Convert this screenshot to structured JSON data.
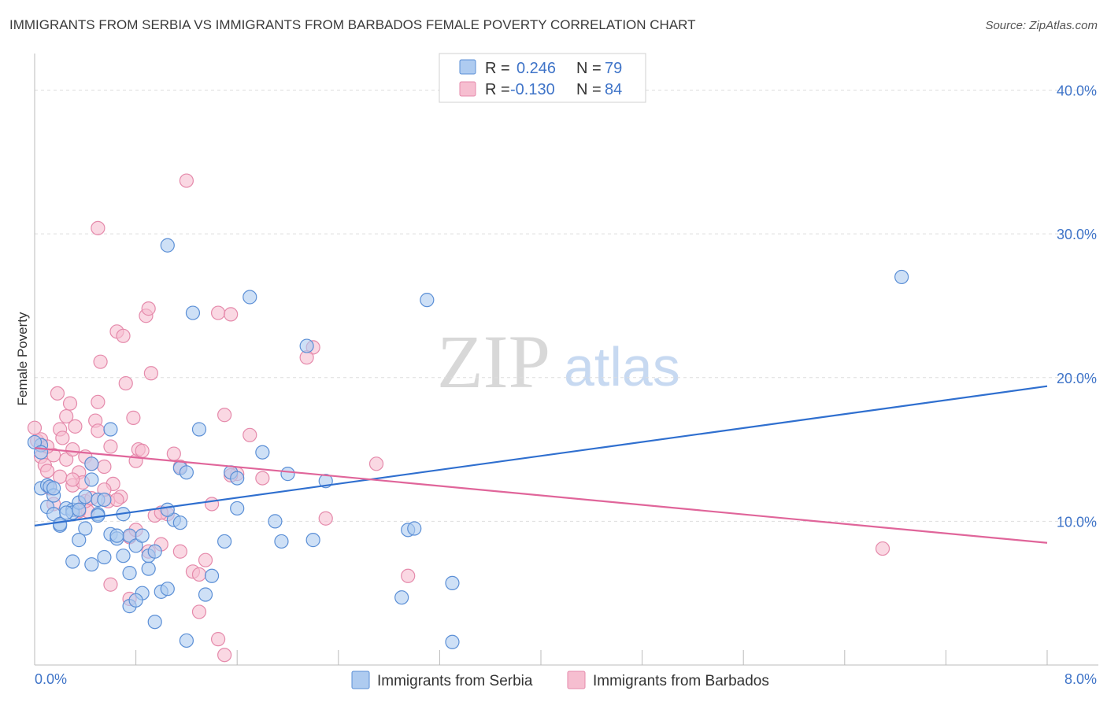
{
  "title": "IMMIGRANTS FROM SERBIA VS IMMIGRANTS FROM BARBADOS FEMALE POVERTY CORRELATION CHART",
  "source": "Source: ZipAtlas.com",
  "watermark": {
    "zip": "ZIP",
    "atlas": "atlas"
  },
  "colors": {
    "serbia_fill": "#aecbf0",
    "serbia_stroke": "#5b8fd6",
    "serbia_line": "#2f6fcf",
    "barbados_fill": "#f6bed0",
    "barbados_stroke": "#e58aab",
    "barbados_line": "#e0659a",
    "grid": "#dddddd",
    "axis_text": "#3f74c8"
  },
  "chart_data": {
    "type": "scatter",
    "title": "IMMIGRANTS FROM SERBIA VS IMMIGRANTS FROM BARBADOS FEMALE POVERTY CORRELATION CHART",
    "xlabel": "",
    "ylabel": "Female Poverty",
    "xlim": [
      0,
      8.5
    ],
    "ylim": [
      0,
      42
    ],
    "x_tick_labels": [
      "0.0%",
      "8.0%"
    ],
    "y_tick_values": [
      10,
      20,
      30,
      40
    ],
    "y_tick_labels": [
      "10.0%",
      "20.0%",
      "30.0%",
      "40.0%"
    ],
    "legend": {
      "rows": [
        {
          "r_label": "R =",
          "r_value": "0.246",
          "n_label": "N =",
          "n_value": "79"
        },
        {
          "r_label": "R =",
          "r_value": "-0.130",
          "n_label": "N =",
          "n_value": "84"
        }
      ]
    },
    "series": [
      {
        "name": "Immigrants from Serbia",
        "trend": {
          "x0": 0,
          "y0": 9.7,
          "x1": 8.0,
          "y1": 19.4
        },
        "points": [
          [
            0.05,
            15.3
          ],
          [
            0.05,
            12.3
          ],
          [
            0.1,
            12.5
          ],
          [
            0.1,
            11.0
          ],
          [
            0.12,
            12.4
          ],
          [
            0.15,
            11.8
          ],
          [
            0.15,
            10.5
          ],
          [
            0.2,
            9.7
          ],
          [
            0.2,
            9.8
          ],
          [
            0.25,
            10.9
          ],
          [
            0.3,
            10.8
          ],
          [
            0.3,
            10.6
          ],
          [
            0.35,
            11.3
          ],
          [
            0.4,
            11.7
          ],
          [
            0.45,
            12.9
          ],
          [
            0.45,
            14.0
          ],
          [
            0.5,
            11.5
          ],
          [
            0.5,
            10.5
          ],
          [
            0.55,
            11.5
          ],
          [
            0.6,
            16.4
          ],
          [
            0.6,
            9.1
          ],
          [
            0.65,
            8.8
          ],
          [
            0.7,
            7.6
          ],
          [
            0.7,
            10.5
          ],
          [
            0.75,
            9.0
          ],
          [
            0.75,
            6.4
          ],
          [
            0.8,
            8.3
          ],
          [
            0.85,
            5.0
          ],
          [
            0.85,
            9.0
          ],
          [
            0.9,
            6.7
          ],
          [
            0.9,
            7.6
          ],
          [
            0.95,
            7.9
          ],
          [
            1.0,
            5.1
          ],
          [
            1.05,
            5.3
          ],
          [
            1.1,
            10.1
          ],
          [
            1.15,
            13.7
          ],
          [
            1.2,
            13.4
          ],
          [
            1.25,
            24.5
          ],
          [
            1.3,
            16.4
          ],
          [
            1.35,
            4.9
          ],
          [
            1.4,
            6.2
          ],
          [
            1.55,
            13.4
          ],
          [
            1.6,
            10.9
          ],
          [
            1.7,
            25.6
          ],
          [
            1.8,
            14.8
          ],
          [
            1.9,
            10.0
          ],
          [
            2.0,
            13.3
          ],
          [
            2.15,
            22.2
          ],
          [
            2.3,
            12.8
          ],
          [
            0.65,
            9.0
          ],
          [
            0.3,
            7.2
          ],
          [
            0.35,
            8.7
          ],
          [
            0.4,
            9.5
          ],
          [
            0.45,
            7.0
          ],
          [
            0.55,
            7.5
          ],
          [
            0.75,
            4.1
          ],
          [
            0.8,
            4.5
          ],
          [
            0.95,
            3.0
          ],
          [
            1.05,
            29.2
          ],
          [
            1.2,
            1.7
          ],
          [
            1.05,
            10.8
          ],
          [
            1.15,
            9.9
          ],
          [
            1.6,
            13.0
          ],
          [
            1.5,
            8.6
          ],
          [
            1.95,
            8.6
          ],
          [
            2.2,
            8.7
          ],
          [
            2.95,
            9.4
          ],
          [
            3.0,
            9.5
          ],
          [
            3.1,
            25.4
          ],
          [
            2.9,
            4.7
          ],
          [
            3.3,
            5.7
          ],
          [
            3.3,
            1.6
          ],
          [
            6.85,
            27.0
          ],
          [
            0.0,
            15.5
          ],
          [
            0.05,
            14.8
          ],
          [
            0.15,
            12.3
          ],
          [
            0.25,
            10.6
          ],
          [
            0.35,
            10.8
          ],
          [
            0.5,
            10.4
          ]
        ]
      },
      {
        "name": "Immigrants from Barbados",
        "trend": {
          "x0": 0,
          "y0": 15.1,
          "x1": 8.0,
          "y1": 8.5
        },
        "points": [
          [
            0.0,
            16.5
          ],
          [
            0.02,
            15.6
          ],
          [
            0.05,
            14.5
          ],
          [
            0.08,
            13.9
          ],
          [
            0.1,
            13.5
          ],
          [
            0.12,
            12.3
          ],
          [
            0.15,
            14.6
          ],
          [
            0.15,
            11.2
          ],
          [
            0.18,
            18.9
          ],
          [
            0.2,
            16.4
          ],
          [
            0.22,
            15.8
          ],
          [
            0.25,
            17.3
          ],
          [
            0.25,
            14.3
          ],
          [
            0.28,
            18.2
          ],
          [
            0.3,
            15.0
          ],
          [
            0.3,
            12.5
          ],
          [
            0.32,
            16.6
          ],
          [
            0.35,
            13.4
          ],
          [
            0.38,
            12.7
          ],
          [
            0.4,
            14.5
          ],
          [
            0.42,
            10.7
          ],
          [
            0.45,
            14.0
          ],
          [
            0.48,
            17.0
          ],
          [
            0.5,
            18.3
          ],
          [
            0.5,
            16.3
          ],
          [
            0.52,
            21.1
          ],
          [
            0.55,
            13.8
          ],
          [
            0.58,
            11.4
          ],
          [
            0.6,
            15.2
          ],
          [
            0.62,
            12.6
          ],
          [
            0.65,
            23.2
          ],
          [
            0.68,
            11.7
          ],
          [
            0.7,
            22.9
          ],
          [
            0.72,
            19.6
          ],
          [
            0.75,
            8.9
          ],
          [
            0.78,
            17.2
          ],
          [
            0.8,
            14.2
          ],
          [
            0.82,
            15.0
          ],
          [
            0.85,
            14.9
          ],
          [
            0.88,
            24.3
          ],
          [
            0.9,
            24.8
          ],
          [
            0.92,
            20.3
          ],
          [
            0.95,
            10.4
          ],
          [
            1.0,
            8.4
          ],
          [
            1.05,
            10.5
          ],
          [
            1.1,
            14.7
          ],
          [
            1.15,
            13.8
          ],
          [
            1.2,
            33.7
          ],
          [
            1.25,
            6.5
          ],
          [
            1.3,
            3.7
          ],
          [
            1.35,
            7.3
          ],
          [
            1.4,
            11.2
          ],
          [
            1.45,
            24.5
          ],
          [
            1.5,
            17.4
          ],
          [
            1.55,
            24.4
          ],
          [
            1.6,
            13.3
          ],
          [
            1.7,
            16.0
          ],
          [
            1.8,
            13.0
          ],
          [
            2.2,
            22.1
          ],
          [
            2.15,
            21.4
          ],
          [
            2.3,
            10.2
          ],
          [
            2.7,
            14.0
          ],
          [
            2.95,
            6.2
          ],
          [
            6.7,
            8.1
          ],
          [
            0.05,
            15.7
          ],
          [
            0.1,
            15.2
          ],
          [
            0.2,
            13.1
          ],
          [
            0.3,
            12.9
          ],
          [
            0.4,
            11.4
          ],
          [
            0.5,
            30.4
          ],
          [
            0.6,
            5.6
          ],
          [
            0.75,
            4.6
          ],
          [
            0.8,
            9.4
          ],
          [
            0.9,
            7.9
          ],
          [
            1.0,
            10.6
          ],
          [
            1.15,
            7.9
          ],
          [
            1.3,
            6.3
          ],
          [
            1.45,
            1.8
          ],
          [
            1.5,
            0.7
          ],
          [
            1.55,
            13.2
          ],
          [
            0.35,
            10.7
          ],
          [
            0.45,
            11.6
          ],
          [
            0.55,
            12.2
          ],
          [
            0.65,
            11.5
          ]
        ]
      }
    ]
  },
  "bottom_legend": {
    "serbia": "Immigrants from Serbia",
    "barbados": "Immigrants from Barbados"
  }
}
